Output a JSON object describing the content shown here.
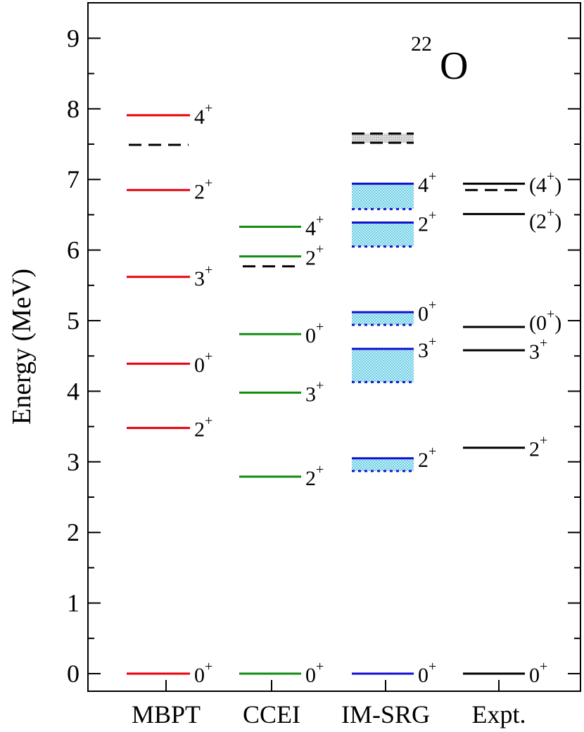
{
  "chart_data": {
    "type": "level-scheme",
    "nucleus": {
      "mass": "22",
      "symbol": "O"
    },
    "ylabel": "Energy (MeV)",
    "ylim": [
      0,
      9.5
    ],
    "yticks": [
      "0",
      "1",
      "2",
      "3",
      "4",
      "5",
      "6",
      "7",
      "8",
      "9"
    ],
    "columns": [
      {
        "name": "MBPT",
        "color": "#e8000b",
        "levels": [
          {
            "energy": 0.0,
            "spin": "0",
            "parity": "+"
          },
          {
            "energy": 3.48,
            "spin": "2",
            "parity": "+"
          },
          {
            "energy": 4.39,
            "spin": "0",
            "parity": "+"
          },
          {
            "energy": 5.62,
            "spin": "3",
            "parity": "+"
          },
          {
            "energy": 6.85,
            "spin": "2",
            "parity": "+"
          },
          {
            "energy": 7.91,
            "spin": "4",
            "parity": "+"
          }
        ],
        "threshold_lines": [
          {
            "energy": 7.49
          }
        ]
      },
      {
        "name": "CCEI",
        "color": "#138a13",
        "levels": [
          {
            "energy": 0.0,
            "spin": "0",
            "parity": "+"
          },
          {
            "energy": 2.79,
            "spin": "2",
            "parity": "+"
          },
          {
            "energy": 3.98,
            "spin": "3",
            "parity": "+"
          },
          {
            "energy": 4.81,
            "spin": "0",
            "parity": "+"
          },
          {
            "energy": 5.91,
            "spin": "2",
            "parity": "+"
          },
          {
            "energy": 6.33,
            "spin": "4",
            "parity": "+"
          }
        ],
        "threshold_lines": [
          {
            "energy": 5.77
          }
        ]
      },
      {
        "name": "IM-SRG",
        "color": "#1010d0",
        "band_color": "#8fd8ea",
        "levels": [
          {
            "energy": 0.0,
            "spin": "0",
            "parity": "+"
          },
          {
            "energy": 3.05,
            "low": 2.87,
            "spin": "2",
            "parity": "+"
          },
          {
            "energy": 4.6,
            "low": 4.13,
            "spin": "3",
            "parity": "+"
          },
          {
            "energy": 5.12,
            "low": 4.94,
            "spin": "0",
            "parity": "+"
          },
          {
            "energy": 6.39,
            "low": 6.05,
            "spin": "2",
            "parity": "+"
          },
          {
            "energy": 6.94,
            "low": 6.58,
            "spin": "4",
            "parity": "+"
          }
        ],
        "threshold_band": {
          "high": 7.65,
          "low": 7.52
        }
      },
      {
        "name": "Expt.",
        "color": "#000000",
        "levels": [
          {
            "energy": 0.0,
            "spin": "0",
            "parity": "+",
            "tentative": false
          },
          {
            "energy": 3.2,
            "spin": "2",
            "parity": "+",
            "tentative": false
          },
          {
            "energy": 4.58,
            "spin": "3",
            "parity": "+",
            "tentative": false
          },
          {
            "energy": 4.91,
            "spin": "0",
            "parity": "+",
            "tentative": true
          },
          {
            "energy": 6.51,
            "spin": "2",
            "parity": "+",
            "tentative": true
          },
          {
            "energy": 6.94,
            "spin": "4",
            "parity": "+",
            "tentative": true
          }
        ],
        "threshold_lines": [
          {
            "energy": 6.85
          }
        ]
      }
    ]
  }
}
